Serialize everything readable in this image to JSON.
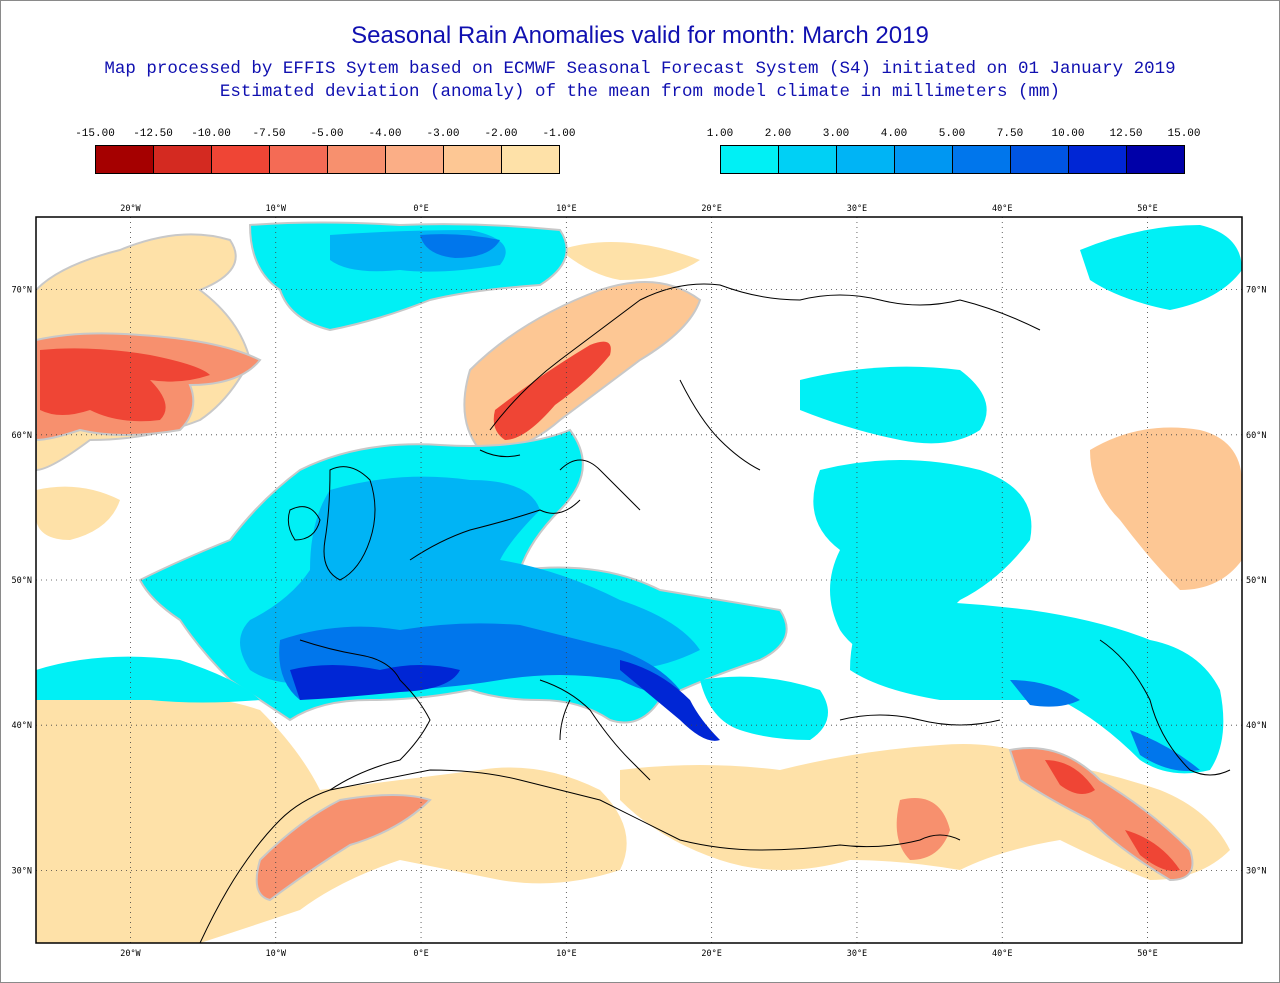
{
  "title": "Seasonal Rain Anomalies valid for month: March 2019",
  "subtitle1": "Map processed by EFFIS Sytem based on ECMWF Seasonal Forecast System (S4) initiated on 01 January 2019",
  "subtitle2": "Estimated deviation (anomaly) of the mean from model climate in millimeters (mm)",
  "legend_negative": {
    "labels": [
      "-15.00",
      "-12.50",
      "-10.00",
      "-7.50",
      "-5.00",
      "-4.00",
      "-3.00",
      "-2.00",
      "-1.00"
    ],
    "colors": [
      "#a50000",
      "#d42a21",
      "#ef4535",
      "#f46b55",
      "#f7906e",
      "#fbae86",
      "#fdc794",
      "#fee1a8"
    ]
  },
  "legend_positive": {
    "labels": [
      "1.00",
      "2.00",
      "3.00",
      "4.00",
      "5.00",
      "7.50",
      "10.00",
      "12.50",
      "15.00"
    ],
    "colors": [
      "#00f0f5",
      "#00d0f5",
      "#00b4f5",
      "#0097f2",
      "#0076ec",
      "#0055e3",
      "#0026d5",
      "#0000a8"
    ]
  },
  "map": {
    "lon_ticks": [
      "20°W",
      "10°W",
      "0°E",
      "10°E",
      "20°E",
      "30°E",
      "40°E",
      "50°E"
    ],
    "lat_ticks": [
      "70°N",
      "60°N",
      "50°N",
      "40°N",
      "30°N"
    ],
    "lon_values": [
      -20,
      -10,
      0,
      10,
      20,
      30,
      40,
      50
    ],
    "lat_values": [
      70,
      60,
      50,
      40,
      30
    ],
    "lon_range": [
      -26.5,
      56.5
    ],
    "lat_range": [
      25,
      75
    ]
  }
}
